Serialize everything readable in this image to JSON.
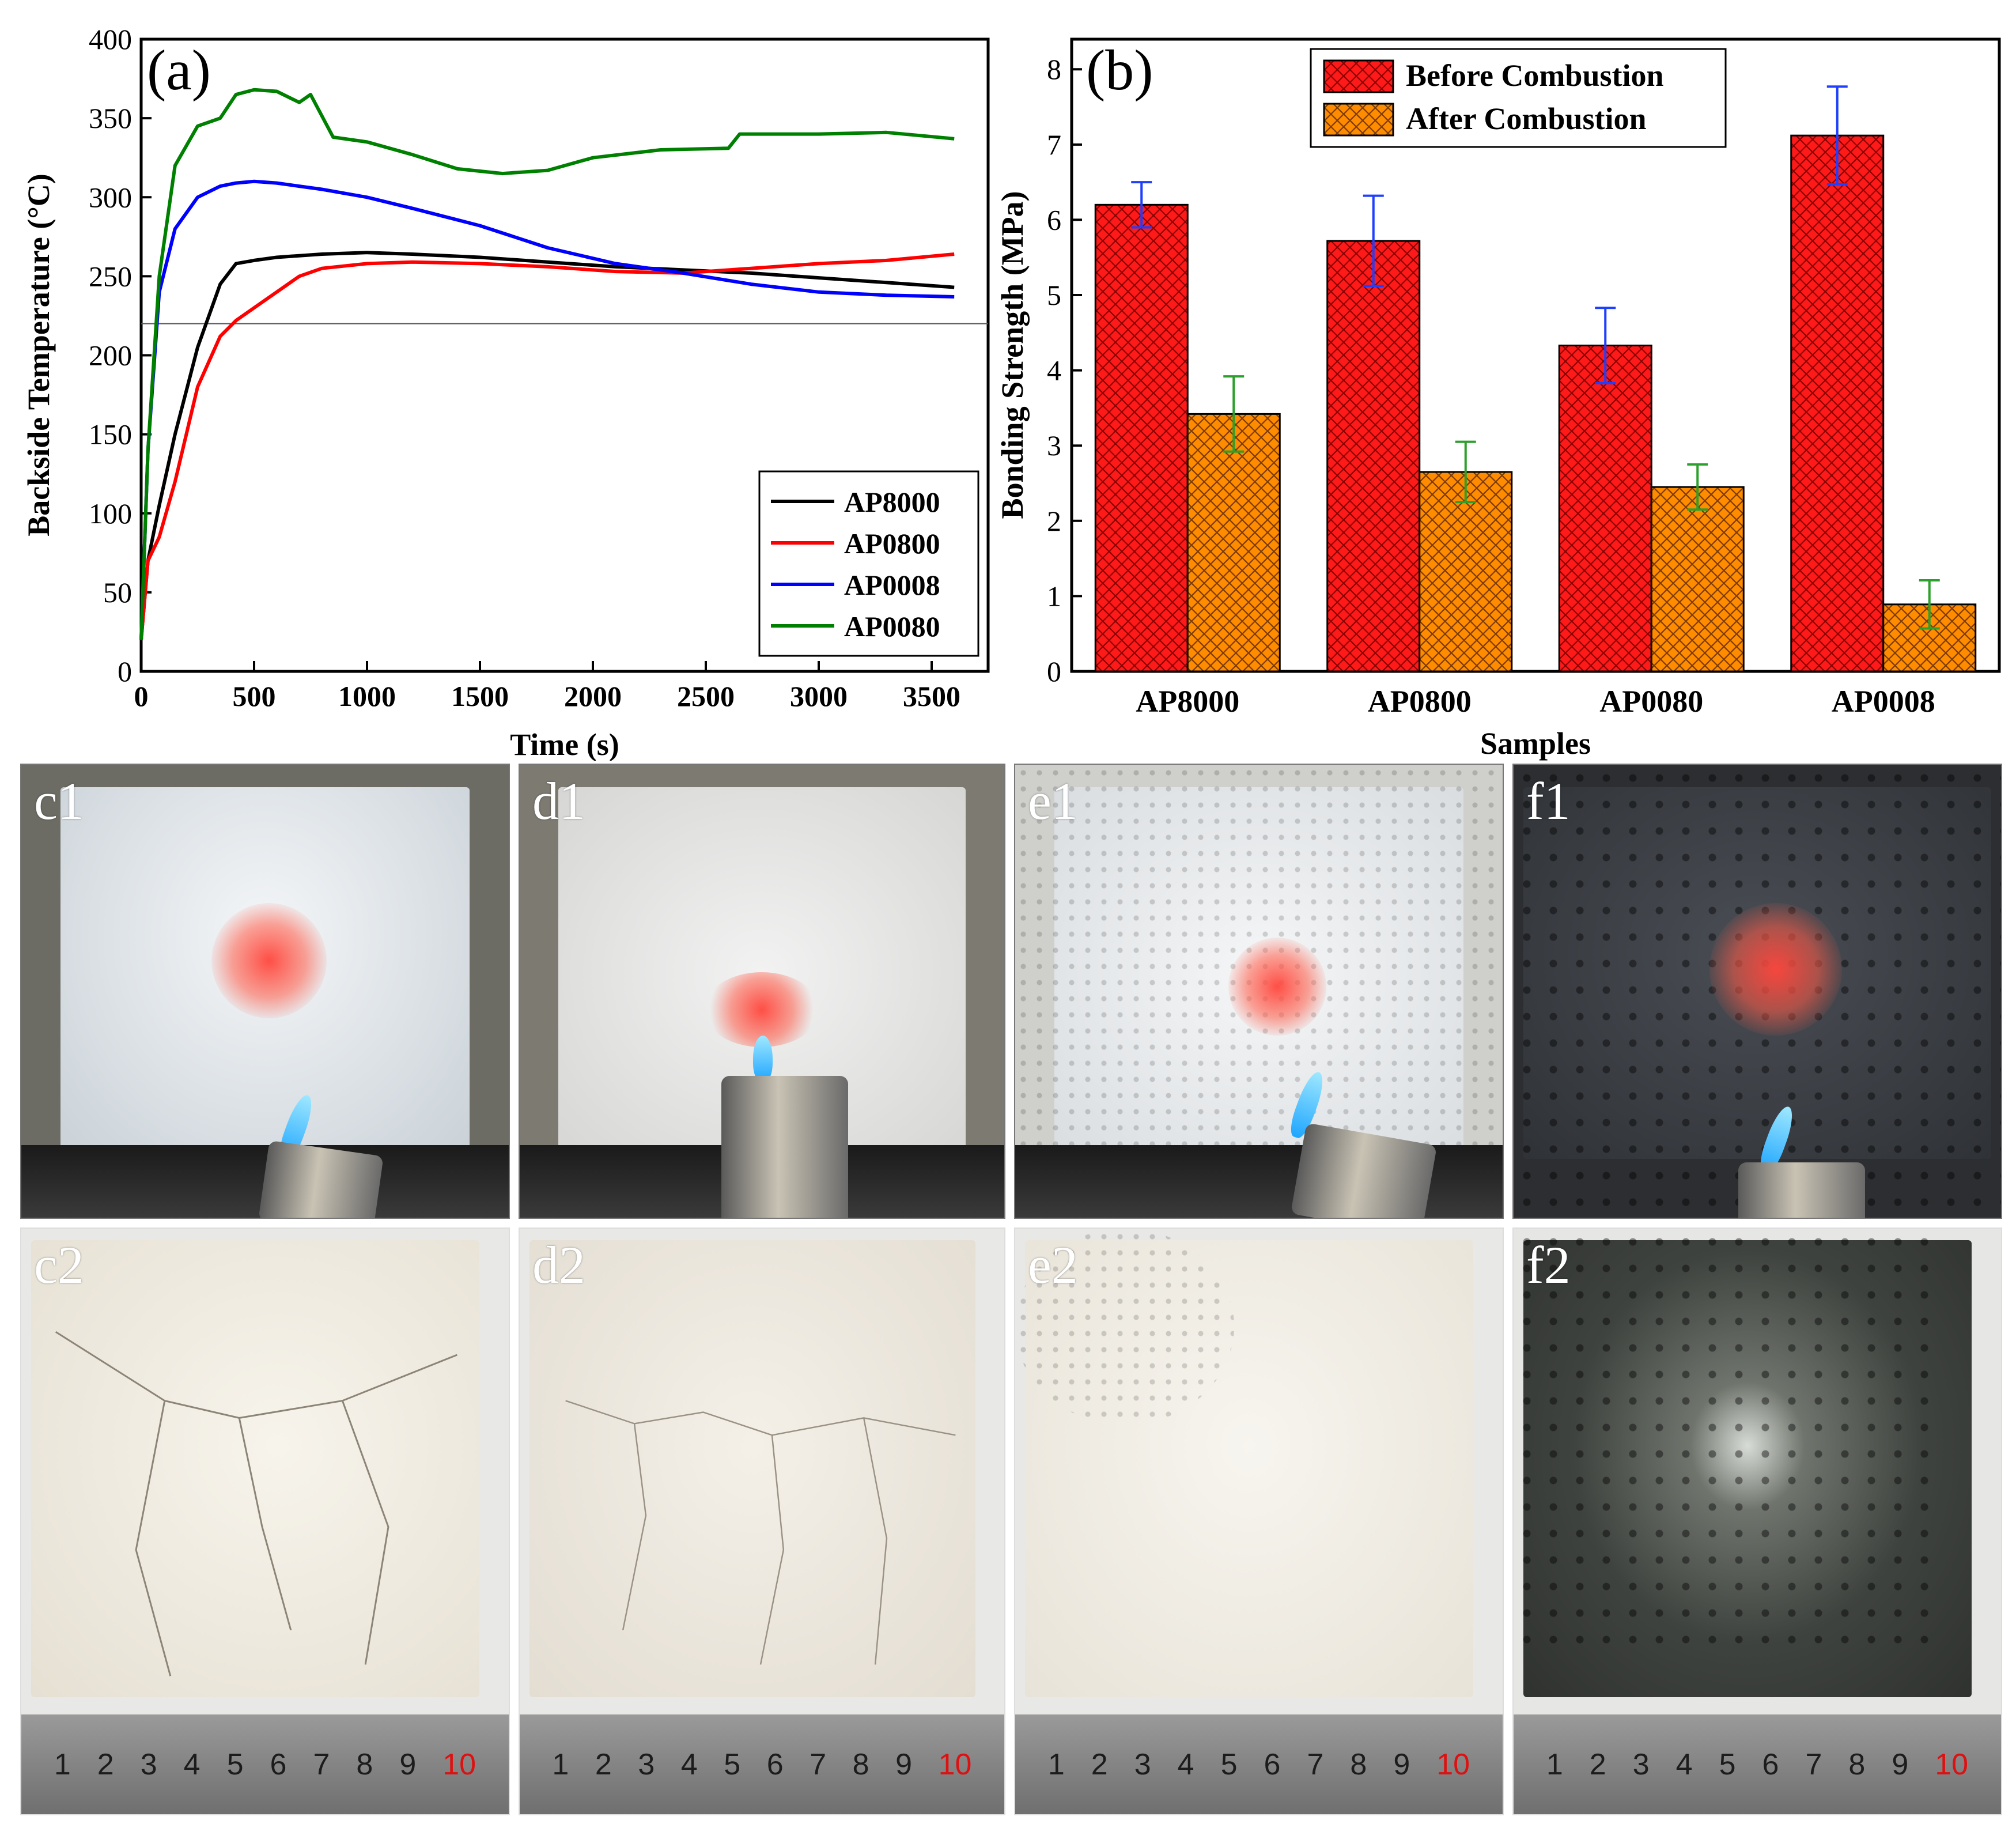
{
  "chart_data": [
    {
      "id": "a",
      "type": "line",
      "panel_label": "(a)",
      "xlabel": "Time (s)",
      "ylabel": "Backside Temperature (°C)",
      "xlim": [
        0,
        3750
      ],
      "ylim": [
        0,
        400
      ],
      "x_ticks": [
        0,
        500,
        1000,
        1500,
        2000,
        2500,
        3000,
        3500
      ],
      "y_ticks": [
        0,
        50,
        100,
        150,
        200,
        250,
        300,
        350,
        400
      ],
      "reference_line_y": 220,
      "legend_position": "bottom-right",
      "series": [
        {
          "name": "AP8000",
          "color": "#000000",
          "x": [
            0,
            30,
            80,
            150,
            250,
            350,
            420,
            500,
            600,
            700,
            800,
            1000,
            1200,
            1500,
            1800,
            2100,
            2400,
            2700,
            3000,
            3300,
            3600
          ],
          "y": [
            20,
            70,
            105,
            150,
            205,
            245,
            258,
            260,
            262,
            263,
            264,
            265,
            264,
            262,
            259,
            256,
            254,
            252,
            249,
            246,
            243
          ]
        },
        {
          "name": "AP0800",
          "color": "#ff0000",
          "x": [
            0,
            30,
            80,
            150,
            250,
            350,
            420,
            500,
            600,
            700,
            800,
            1000,
            1200,
            1500,
            1800,
            2100,
            2400,
            2700,
            3000,
            3300,
            3600
          ],
          "y": [
            20,
            70,
            85,
            120,
            180,
            212,
            222,
            230,
            240,
            250,
            255,
            258,
            259,
            258,
            256,
            253,
            252,
            255,
            258,
            260,
            264
          ]
        },
        {
          "name": "AP0008",
          "color": "#0000ff",
          "x": [
            0,
            30,
            80,
            150,
            250,
            350,
            420,
            500,
            600,
            700,
            800,
            1000,
            1200,
            1500,
            1800,
            2100,
            2400,
            2700,
            3000,
            3300,
            3600
          ],
          "y": [
            20,
            140,
            240,
            280,
            300,
            307,
            309,
            310,
            309,
            307,
            305,
            300,
            293,
            282,
            268,
            258,
            252,
            245,
            240,
            238,
            237
          ]
        },
        {
          "name": "AP0080",
          "color": "#008000",
          "x": [
            0,
            30,
            80,
            150,
            250,
            350,
            420,
            500,
            600,
            700,
            750,
            850,
            1000,
            1200,
            1400,
            1600,
            1800,
            2000,
            2300,
            2600,
            2650,
            3000,
            3300,
            3600
          ],
          "y": [
            20,
            140,
            250,
            320,
            345,
            350,
            365,
            368,
            367,
            360,
            365,
            338,
            335,
            327,
            318,
            315,
            317,
            325,
            330,
            331,
            340,
            340,
            341,
            337
          ]
        }
      ]
    },
    {
      "id": "b",
      "type": "bar",
      "panel_label": "(b)",
      "xlabel": "Samples",
      "ylabel": "Bonding Strength (MPa)",
      "categories": [
        "AP8000",
        "AP0800",
        "AP0080",
        "AP0008"
      ],
      "ylim": [
        0,
        8.4
      ],
      "y_ticks": [
        0,
        1,
        2,
        3,
        4,
        5,
        6,
        7,
        8
      ],
      "legend_position": "top",
      "series": [
        {
          "name": "Before Combustion",
          "color": "#ff1a1a",
          "error_color": "#1f3fff",
          "values": [
            6.2,
            5.72,
            4.33,
            7.12
          ],
          "errors": [
            0.3,
            0.6,
            0.5,
            0.65
          ]
        },
        {
          "name": "After Combustion",
          "color": "#ff8c00",
          "error_color": "#2ca02c",
          "values": [
            3.42,
            2.65,
            2.45,
            0.89
          ],
          "errors": [
            0.5,
            0.4,
            0.3,
            0.32
          ]
        }
      ]
    }
  ],
  "photos": {
    "row1": [
      {
        "label": "c1",
        "tone": "#dde4ea"
      },
      {
        "label": "d1",
        "tone": "#e7e7e7"
      },
      {
        "label": "e1",
        "tone": "#e9ecee"
      },
      {
        "label": "f1",
        "tone": "#3b3e44"
      }
    ],
    "row2": [
      {
        "label": "c2",
        "tone": "#efebe2"
      },
      {
        "label": "d2",
        "tone": "#eeeae3"
      },
      {
        "label": "e2",
        "tone": "#f1eee7"
      },
      {
        "label": "f2",
        "tone": "#3f433f"
      }
    ],
    "ruler_numbers": [
      "1",
      "2",
      "3",
      "4",
      "5",
      "6",
      "7",
      "8",
      "9",
      "10"
    ]
  }
}
